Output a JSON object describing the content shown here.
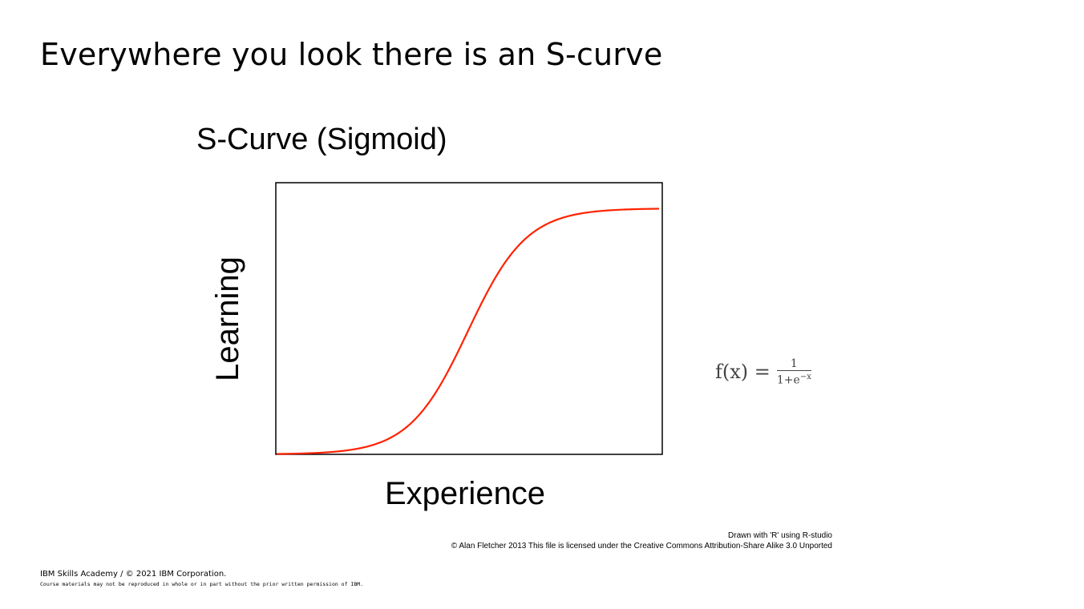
{
  "slide": {
    "title": "Everywhere you look there is an S-curve",
    "formula": {
      "lhs": "f(x) =",
      "numerator": "1",
      "denominator_base": "1+e",
      "denominator_exp": "−x"
    },
    "credit_line1": "Drawn with 'R' using R-studio",
    "credit_line2": "© Alan Fletcher 2013 This file is licensed under the Creative Commons Attribution-Share Alike 3.0 Unported",
    "footer_line1": "IBM Skills Academy / © 2021 IBM Corporation.",
    "footer_line2": "Course materials may not be reproduced in whole or in part without the prior written permission of IBM."
  },
  "chart_data": {
    "type": "line",
    "title": "S-Curve (Sigmoid)",
    "xlabel": "Experience",
    "ylabel": "Learning",
    "function": "1/(1+e^-x)",
    "xlim": [
      -6.5,
      6.5
    ],
    "ylim": [
      0,
      1
    ],
    "grid": false,
    "ticks": false,
    "series": [
      {
        "color": "#ff2200",
        "x_start": -6.5,
        "x_end": 6.5
      }
    ]
  }
}
